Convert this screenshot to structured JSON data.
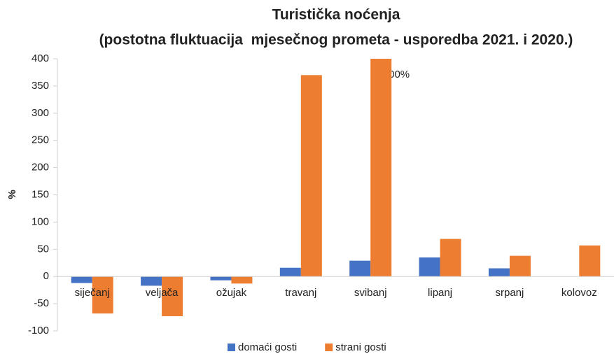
{
  "chart_data": {
    "type": "bar",
    "title": "Turistička noćenja",
    "subtitle": "(postotna fluktuacija  mjesečnog prometa - usporedba 2021. i 2020.)",
    "y_label": "%",
    "annotation": ">400%",
    "categories": [
      "siječanj",
      "veljača",
      "ožujak",
      "travanj",
      "svibanj",
      "lipanj",
      "srpanj",
      "kolovoz"
    ],
    "series": [
      {
        "name": "domaći gosti",
        "color": "#4472c4",
        "values": [
          -12,
          -17,
          -7,
          16,
          29,
          35,
          15,
          null
        ]
      },
      {
        "name": "strani gosti",
        "color": "#ed7d31",
        "values": [
          -68,
          -73,
          -13,
          370,
          400,
          69,
          38,
          57
        ]
      }
    ],
    "ylim": [
      -100,
      400
    ],
    "yticks": [
      -100,
      -50,
      0,
      50,
      100,
      150,
      200,
      250,
      300,
      350,
      400
    ],
    "grid": false,
    "legend": "bottom"
  }
}
